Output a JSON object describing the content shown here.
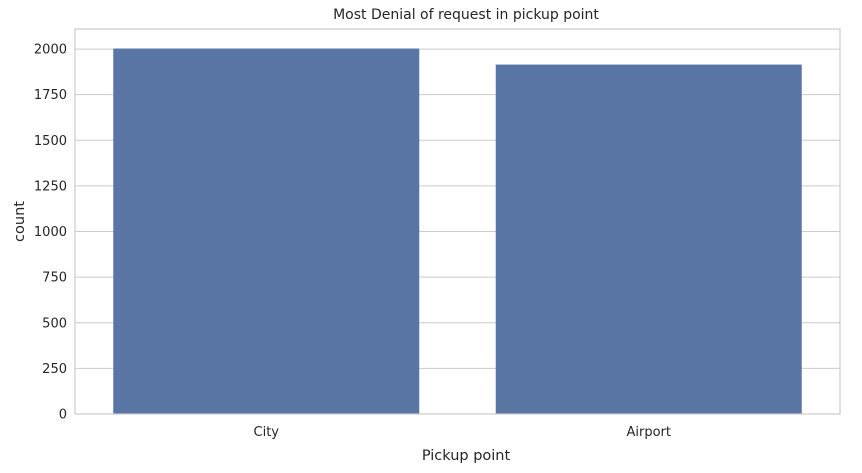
{
  "chart_data": {
    "type": "bar",
    "title": "Most Denial of request in pickup point",
    "xlabel": "Pickup point",
    "ylabel": "count",
    "categories": [
      "City",
      "Airport"
    ],
    "values": [
      2003,
      1915
    ],
    "ylim": [
      0,
      2110
    ],
    "yticks": [
      0,
      250,
      500,
      750,
      1000,
      1250,
      1500,
      1750,
      2000
    ],
    "grid": "horizontal",
    "bar_color": "#5975a4"
  }
}
